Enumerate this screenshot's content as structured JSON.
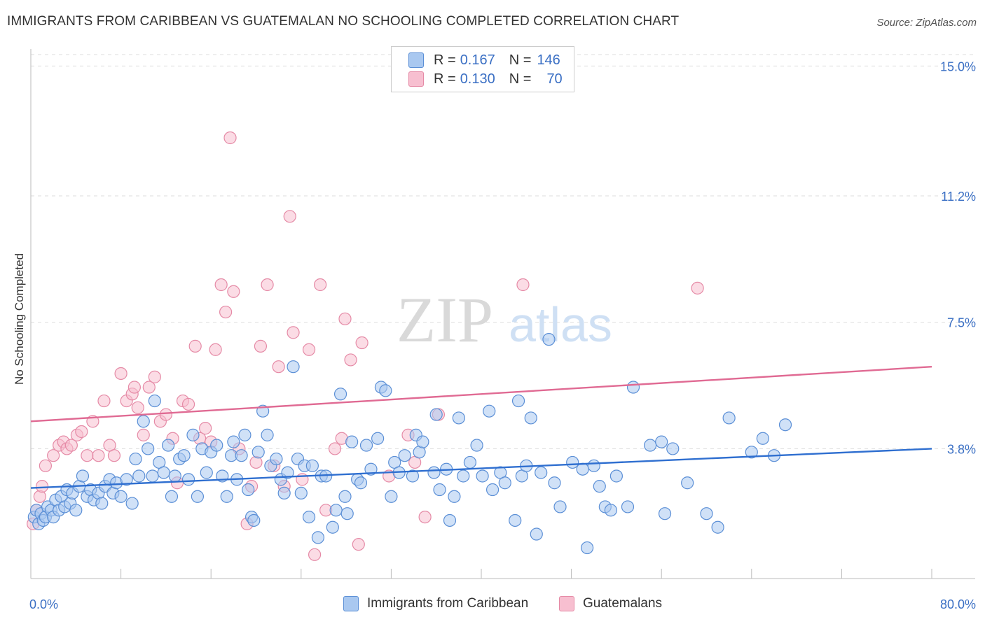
{
  "title": "IMMIGRANTS FROM CARIBBEAN VS GUATEMALAN NO SCHOOLING COMPLETED CORRELATION CHART",
  "source": "Source: ZipAtlas.com",
  "watermark": {
    "zip": "ZIP",
    "atlas": "atlas"
  },
  "legend": {
    "rows": [
      {
        "r_label": "R =",
        "r_value": "0.167",
        "n_label": "N =",
        "n_value": "146"
      },
      {
        "r_label": "R =",
        "r_value": "0.130",
        "n_label": "N =",
        "n_value": "70"
      }
    ]
  },
  "colors": {
    "blue_fill": "#a9c8f0",
    "blue_stroke": "#5b8fd6",
    "blue_line": "#2f6fd0",
    "pink_fill": "#f7bfd0",
    "pink_stroke": "#e58aa6",
    "pink_line": "#e06a93",
    "tick_label": "#3a6fc4",
    "grid": "#dddddd"
  },
  "chart_data": {
    "type": "scatter",
    "title": "IMMIGRANTS FROM CARIBBEAN VS GUATEMALAN NO SCHOOLING COMPLETED CORRELATION CHART",
    "xlabel": "",
    "ylabel": "No Schooling Completed",
    "xlim": [
      0,
      80
    ],
    "ylim": [
      0,
      15.5
    ],
    "x_tick_labels": [
      "0.0%",
      "80.0%"
    ],
    "y_ticks": [
      3.8,
      7.5,
      11.2,
      15.0
    ],
    "y_tick_labels": [
      "3.8%",
      "7.5%",
      "11.2%",
      "15.0%"
    ],
    "grid": "horizontal dashed",
    "legend_placement": "top-center",
    "series": [
      {
        "name": "Immigrants from Caribbean",
        "r": 0.167,
        "n": 146,
        "trend": {
          "x": [
            0,
            80
          ],
          "y": [
            2.65,
            3.8
          ]
        },
        "points": [
          [
            0.3,
            1.8
          ],
          [
            0.5,
            2.0
          ],
          [
            0.7,
            1.6
          ],
          [
            0.9,
            1.9
          ],
          [
            1.1,
            1.7
          ],
          [
            1.3,
            1.8
          ],
          [
            1.5,
            2.1
          ],
          [
            1.8,
            2.0
          ],
          [
            2.0,
            1.8
          ],
          [
            2.2,
            2.3
          ],
          [
            2.5,
            2.0
          ],
          [
            2.7,
            2.4
          ],
          [
            3.0,
            2.1
          ],
          [
            3.2,
            2.6
          ],
          [
            3.5,
            2.2
          ],
          [
            3.7,
            2.5
          ],
          [
            4.0,
            2.0
          ],
          [
            4.3,
            2.7
          ],
          [
            4.6,
            3.0
          ],
          [
            5.0,
            2.4
          ],
          [
            5.3,
            2.6
          ],
          [
            5.6,
            2.3
          ],
          [
            6.0,
            2.5
          ],
          [
            6.3,
            2.2
          ],
          [
            6.6,
            2.7
          ],
          [
            7.0,
            2.9
          ],
          [
            7.3,
            2.5
          ],
          [
            7.6,
            2.8
          ],
          [
            8.0,
            2.4
          ],
          [
            8.5,
            2.9
          ],
          [
            9.0,
            2.2
          ],
          [
            9.3,
            3.5
          ],
          [
            9.6,
            3.0
          ],
          [
            10.0,
            4.6
          ],
          [
            10.4,
            3.8
          ],
          [
            10.8,
            3.0
          ],
          [
            11.0,
            5.2
          ],
          [
            11.4,
            3.4
          ],
          [
            11.8,
            3.1
          ],
          [
            12.2,
            3.9
          ],
          [
            12.5,
            2.4
          ],
          [
            12.8,
            3.0
          ],
          [
            13.2,
            3.5
          ],
          [
            13.6,
            3.6
          ],
          [
            14.0,
            2.9
          ],
          [
            14.4,
            4.2
          ],
          [
            14.8,
            2.4
          ],
          [
            15.2,
            3.8
          ],
          [
            15.6,
            3.1
          ],
          [
            16.0,
            3.7
          ],
          [
            16.5,
            3.9
          ],
          [
            17.0,
            3.0
          ],
          [
            17.4,
            2.4
          ],
          [
            17.8,
            3.6
          ],
          [
            18.0,
            4.0
          ],
          [
            18.3,
            2.9
          ],
          [
            18.7,
            3.6
          ],
          [
            19.0,
            4.2
          ],
          [
            19.3,
            2.6
          ],
          [
            19.6,
            1.8
          ],
          [
            19.8,
            1.7
          ],
          [
            20.2,
            3.7
          ],
          [
            20.6,
            4.9
          ],
          [
            21.0,
            4.2
          ],
          [
            21.3,
            3.3
          ],
          [
            21.8,
            3.5
          ],
          [
            22.2,
            2.9
          ],
          [
            22.5,
            2.5
          ],
          [
            22.8,
            3.1
          ],
          [
            23.3,
            6.2
          ],
          [
            23.7,
            3.5
          ],
          [
            24.0,
            2.5
          ],
          [
            24.3,
            3.3
          ],
          [
            24.7,
            1.8
          ],
          [
            25.0,
            3.3
          ],
          [
            25.5,
            1.2
          ],
          [
            25.8,
            3.0
          ],
          [
            26.2,
            3.0
          ],
          [
            26.8,
            1.5
          ],
          [
            27.1,
            2.0
          ],
          [
            27.5,
            5.4
          ],
          [
            27.9,
            2.4
          ],
          [
            28.1,
            1.9
          ],
          [
            28.5,
            4.0
          ],
          [
            29.0,
            2.9
          ],
          [
            29.3,
            2.8
          ],
          [
            29.8,
            3.9
          ],
          [
            30.2,
            3.2
          ],
          [
            30.8,
            4.1
          ],
          [
            31.1,
            5.6
          ],
          [
            31.5,
            5.5
          ],
          [
            32.0,
            2.4
          ],
          [
            32.3,
            3.4
          ],
          [
            32.7,
            3.1
          ],
          [
            33.2,
            3.6
          ],
          [
            33.9,
            3.0
          ],
          [
            34.2,
            4.2
          ],
          [
            34.5,
            3.7
          ],
          [
            34.8,
            4.0
          ],
          [
            35.8,
            3.1
          ],
          [
            36.0,
            4.8
          ],
          [
            36.3,
            2.6
          ],
          [
            36.9,
            3.2
          ],
          [
            37.2,
            1.7
          ],
          [
            37.6,
            2.4
          ],
          [
            38.0,
            4.7
          ],
          [
            38.4,
            3.0
          ],
          [
            39.0,
            3.4
          ],
          [
            39.6,
            3.9
          ],
          [
            40.1,
            3.0
          ],
          [
            40.7,
            4.9
          ],
          [
            41.0,
            2.6
          ],
          [
            41.7,
            3.1
          ],
          [
            42.1,
            2.8
          ],
          [
            43.0,
            1.7
          ],
          [
            43.3,
            5.2
          ],
          [
            43.6,
            3.0
          ],
          [
            44.0,
            3.3
          ],
          [
            44.4,
            4.7
          ],
          [
            44.9,
            1.3
          ],
          [
            45.3,
            3.1
          ],
          [
            46.0,
            7.0
          ],
          [
            46.5,
            2.8
          ],
          [
            47.0,
            2.1
          ],
          [
            48.1,
            3.4
          ],
          [
            49.0,
            3.2
          ],
          [
            49.4,
            0.9
          ],
          [
            50.0,
            3.3
          ],
          [
            50.5,
            2.7
          ],
          [
            51.0,
            2.1
          ],
          [
            51.5,
            2.0
          ],
          [
            52.0,
            3.0
          ],
          [
            53.0,
            2.1
          ],
          [
            53.5,
            5.6
          ],
          [
            55.0,
            3.9
          ],
          [
            56.0,
            4.0
          ],
          [
            56.3,
            1.9
          ],
          [
            57.0,
            3.8
          ],
          [
            58.3,
            2.8
          ],
          [
            60.0,
            1.9
          ],
          [
            61.0,
            1.5
          ],
          [
            62.0,
            4.7
          ],
          [
            64.0,
            3.7
          ],
          [
            65.0,
            4.1
          ],
          [
            66.0,
            3.6
          ],
          [
            67.0,
            4.5
          ]
        ]
      },
      {
        "name": "Guatemalans",
        "r": 0.13,
        "n": 70,
        "trend": {
          "x": [
            0,
            80
          ],
          "y": [
            4.6,
            6.2
          ]
        },
        "points": [
          [
            0.2,
            1.6
          ],
          [
            0.5,
            2.0
          ],
          [
            0.8,
            2.4
          ],
          [
            1.0,
            2.7
          ],
          [
            1.3,
            3.3
          ],
          [
            2.0,
            3.6
          ],
          [
            2.5,
            3.9
          ],
          [
            2.9,
            4.0
          ],
          [
            3.2,
            3.8
          ],
          [
            3.6,
            3.9
          ],
          [
            4.1,
            4.2
          ],
          [
            4.5,
            4.3
          ],
          [
            5.0,
            3.6
          ],
          [
            5.5,
            4.6
          ],
          [
            6.0,
            3.6
          ],
          [
            6.5,
            5.2
          ],
          [
            7.0,
            3.9
          ],
          [
            7.4,
            3.6
          ],
          [
            8.0,
            6.0
          ],
          [
            8.5,
            5.2
          ],
          [
            9.0,
            5.4
          ],
          [
            9.2,
            5.6
          ],
          [
            9.5,
            5.0
          ],
          [
            10.0,
            4.2
          ],
          [
            10.5,
            5.6
          ],
          [
            11.0,
            5.9
          ],
          [
            11.5,
            4.6
          ],
          [
            12.0,
            4.8
          ],
          [
            12.6,
            4.1
          ],
          [
            13.0,
            2.8
          ],
          [
            13.5,
            5.2
          ],
          [
            14.0,
            5.1
          ],
          [
            14.6,
            6.8
          ],
          [
            15.0,
            4.1
          ],
          [
            15.5,
            4.4
          ],
          [
            16.0,
            4.0
          ],
          [
            16.4,
            6.7
          ],
          [
            16.9,
            8.6
          ],
          [
            17.3,
            7.8
          ],
          [
            17.7,
            12.9
          ],
          [
            18.0,
            8.4
          ],
          [
            18.5,
            3.8
          ],
          [
            19.2,
            1.6
          ],
          [
            19.6,
            2.7
          ],
          [
            20.0,
            3.4
          ],
          [
            20.4,
            6.8
          ],
          [
            21.0,
            8.6
          ],
          [
            21.6,
            3.3
          ],
          [
            22.0,
            6.2
          ],
          [
            22.5,
            2.7
          ],
          [
            23.0,
            10.6
          ],
          [
            23.3,
            7.2
          ],
          [
            24.1,
            2.9
          ],
          [
            24.7,
            6.7
          ],
          [
            25.2,
            0.7
          ],
          [
            25.7,
            8.6
          ],
          [
            26.2,
            2.0
          ],
          [
            27.0,
            3.8
          ],
          [
            27.6,
            4.1
          ],
          [
            27.9,
            7.6
          ],
          [
            28.4,
            6.4
          ],
          [
            29.1,
            1.0
          ],
          [
            29.4,
            6.9
          ],
          [
            31.8,
            3.0
          ],
          [
            33.5,
            4.2
          ],
          [
            34.1,
            3.4
          ],
          [
            35.0,
            1.8
          ],
          [
            36.2,
            4.8
          ],
          [
            43.7,
            8.6
          ],
          [
            59.2,
            8.5
          ]
        ]
      }
    ]
  }
}
